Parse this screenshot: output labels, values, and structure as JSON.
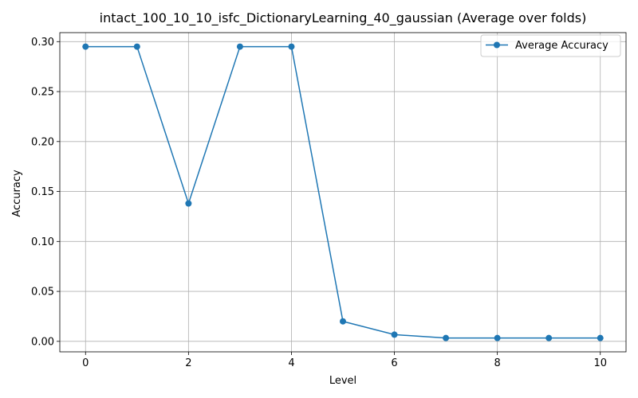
{
  "chart_data": {
    "type": "line",
    "title": "intact_100_10_10_isfc_DictionaryLearning_40_gaussian (Average over folds)",
    "xlabel": "Level",
    "ylabel": "Accuracy",
    "xlim": [
      -0.5,
      10.5
    ],
    "ylim": [
      -0.0105,
      0.309
    ],
    "xticks": [
      0,
      2,
      4,
      6,
      8,
      10
    ],
    "xtick_labels": [
      "0",
      "2",
      "4",
      "6",
      "8",
      "10"
    ],
    "yticks": [
      0.0,
      0.05,
      0.1,
      0.15,
      0.2,
      0.25,
      0.3
    ],
    "ytick_labels": [
      "0.00",
      "0.05",
      "0.10",
      "0.15",
      "0.20",
      "0.25",
      "0.30"
    ],
    "grid": true,
    "legend_position": "top-right",
    "series": [
      {
        "name": "Average Accuracy",
        "color": "#1f77b4",
        "marker": "circle",
        "x": [
          0,
          1,
          2,
          3,
          4,
          5,
          6,
          7,
          8,
          9,
          10
        ],
        "y": [
          0.295,
          0.295,
          0.138,
          0.295,
          0.295,
          0.02,
          0.0067,
          0.0033,
          0.0033,
          0.0033,
          0.0033
        ]
      }
    ]
  }
}
